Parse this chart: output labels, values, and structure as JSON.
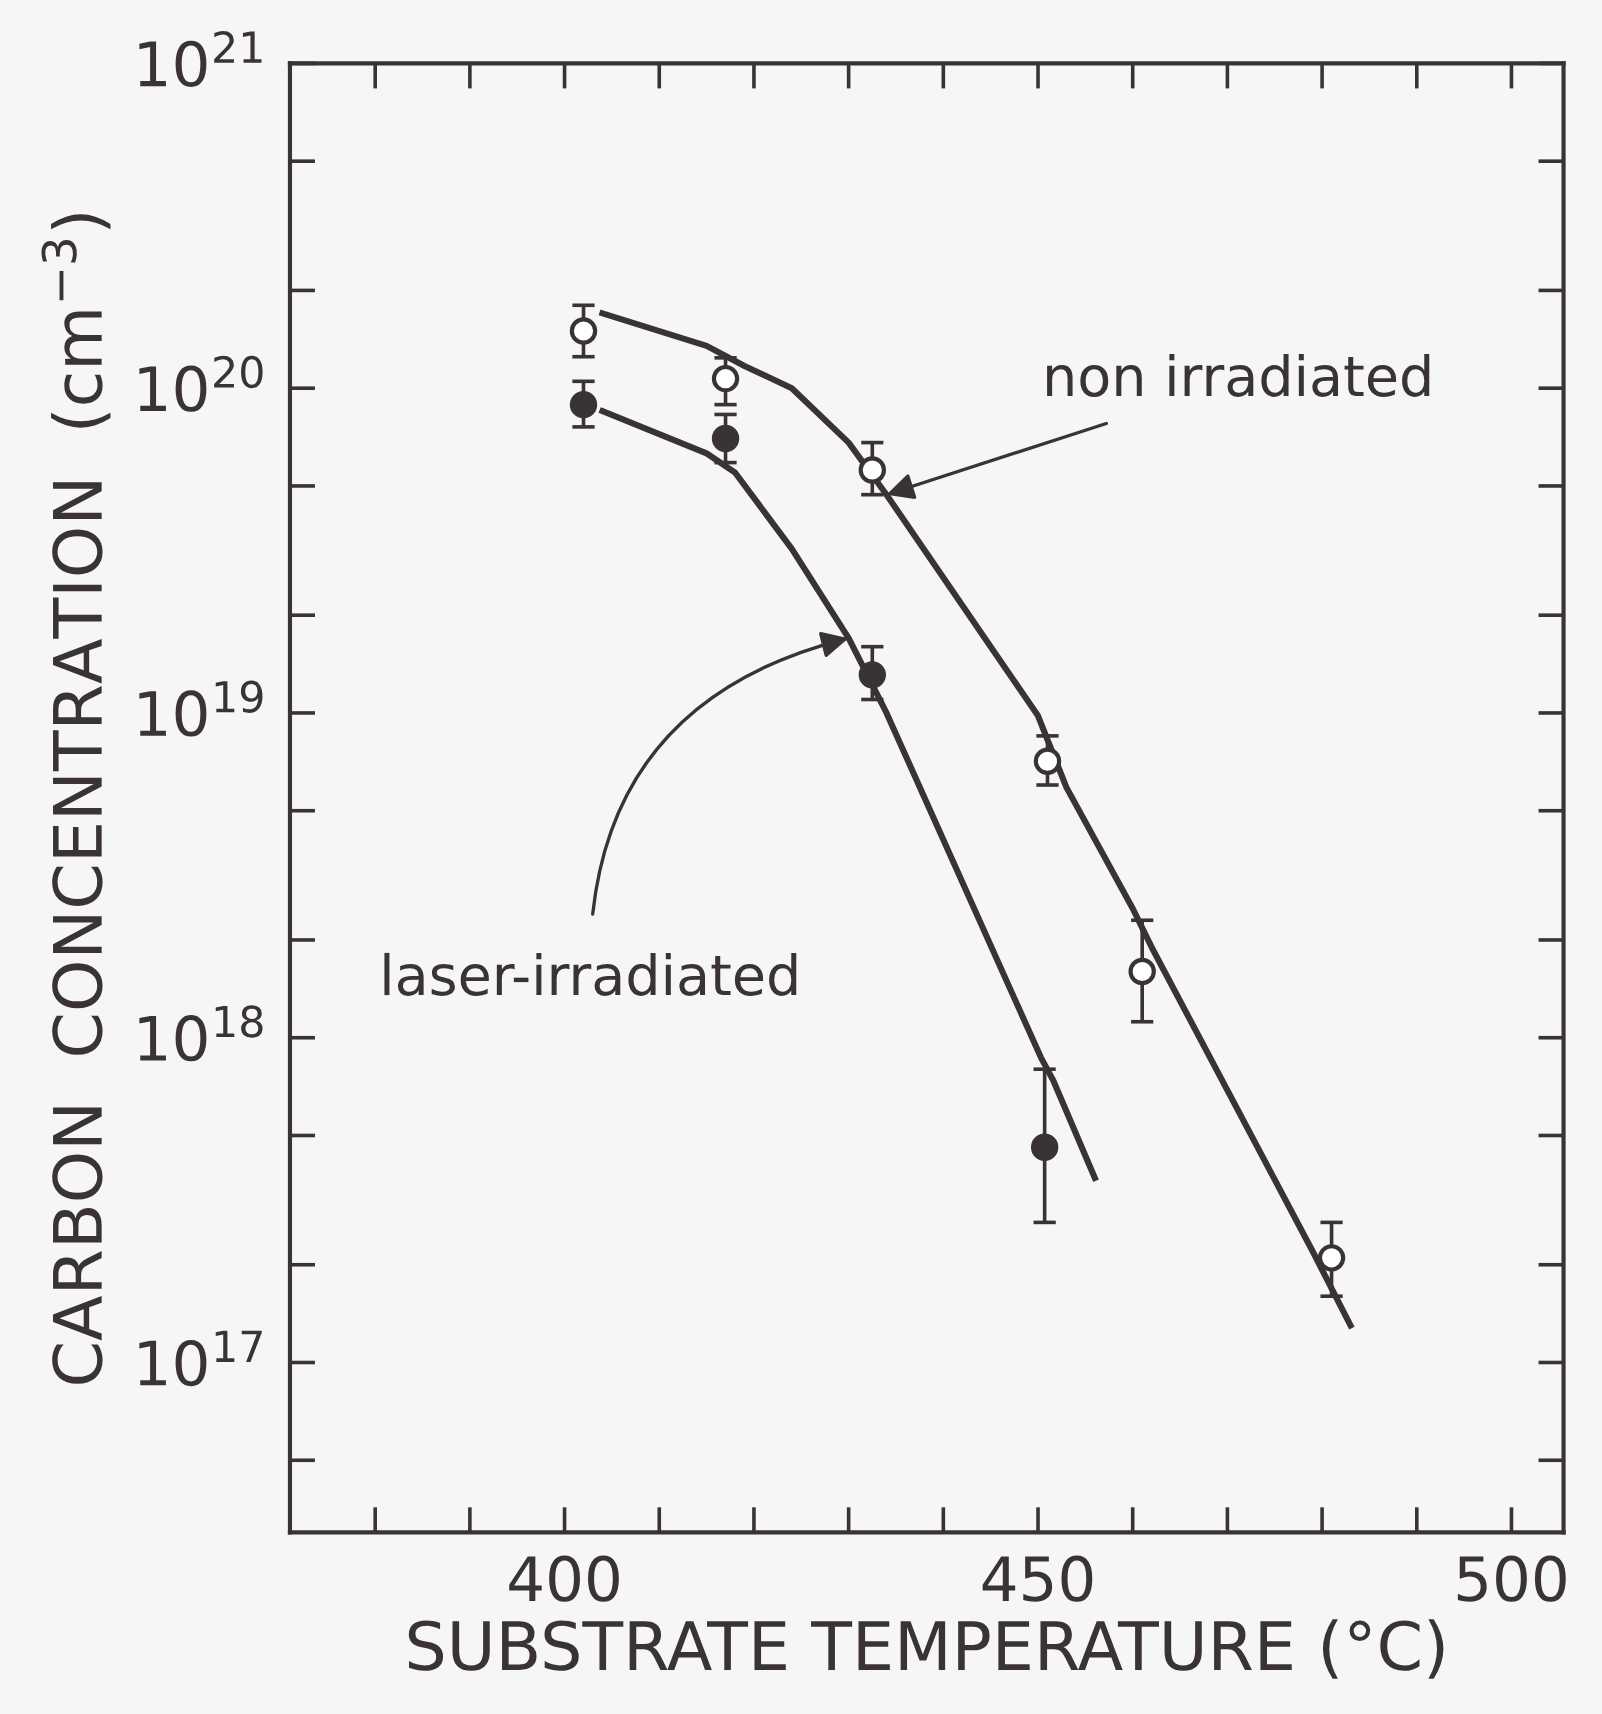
{
  "chart_data": {
    "type": "scatter",
    "xlabel": "SUBSTRATE TEMPERATURE (°C)",
    "ylabel": "CARBON  CONCENTRATION  (cm$^{−3}$)",
    "log": "y",
    "xlim": [
      371,
      505.5
    ],
    "xticks": [
      {
        "value": 380,
        "label": null
      },
      {
        "value": 390,
        "label": null
      },
      400,
      {
        "value": 410,
        "label": null
      },
      {
        "value": 420,
        "label": null
      },
      {
        "value": 430,
        "label": null
      },
      {
        "value": 440,
        "label": null
      },
      450,
      {
        "value": 460,
        "label": null
      },
      {
        "value": 470,
        "label": null
      },
      {
        "value": 480,
        "label": null
      },
      {
        "value": 490,
        "label": null
      },
      500
    ],
    "ylim": [
      3e+16,
      1e+21
    ],
    "yticks": [
      {
        "value": 5e+16,
        "label": null
      },
      {
        "value": 1e+17,
        "label": "10$^{17}$"
      },
      {
        "value": 2e+17,
        "label": null
      },
      {
        "value": 5e+17,
        "label": null
      },
      {
        "value": 1e+18,
        "label": "10$^{18}$"
      },
      {
        "value": 2e+18,
        "label": null
      },
      {
        "value": 5e+18,
        "label": null
      },
      {
        "value": 1e+19,
        "label": "10$^{19}$"
      },
      {
        "value": 2e+19,
        "label": null
      },
      {
        "value": 5e+19,
        "label": null
      },
      {
        "value": 1e+20,
        "label": "10$^{20}$"
      },
      {
        "value": 2e+20,
        "label": null
      },
      {
        "value": 5e+20,
        "label": null
      },
      {
        "value": 1e+21,
        "label": "10$^{21}$"
      }
    ],
    "grid": false,
    "legend": false,
    "series": [
      {
        "color": "#ffffff",
        "marker": "circle",
        "x": [
          402,
          417,
          432.5,
          451,
          461,
          481
        ],
        "values": [
          1.5e+20,
          1.07e+20,
          5.6e+19,
          7.1e+18,
          1.6e+18,
          2.1e+17
        ],
        "errors": [
          [
            1.25e+20,
            1.8e+20
          ],
          [
            8.9e+19,
            1.24e+20
          ],
          [
            4.7e+19,
            6.8e+19
          ],
          [
            6e+18,
            8.5e+18
          ],
          [
            1.12e+18,
            2.3e+18
          ],
          [
            1.6e+17,
            2.7e+17
          ]
        ]
      },
      {
        "color": "#3a3335",
        "marker": "circle",
        "x": [
          402,
          417,
          432.5,
          450.7
        ],
        "values": [
          8.9e+19,
          7e+19,
          1.31e+19,
          4.6e+17
        ],
        "errors": [
          [
            7.6e+19,
            1.05e+20
          ],
          [
            5.9e+19,
            8.3e+19
          ],
          [
            1.1e+19,
            1.6e+19
          ],
          [
            2.7e+17,
            8e+17
          ]
        ]
      },
      {
        "type": "line",
        "color": "#3a3335",
        "marker": "none",
        "line_style": "solid",
        "x": [
          404,
          415,
          419,
          424,
          430,
          434,
          450,
          453,
          460,
          462,
          479,
          483
        ],
        "values": [
          1.7e+20,
          1.35e+20,
          1.17e+20,
          1e+20,
          6.8e+19,
          4.7e+19,
          9.8e+18,
          5.9e+18,
          2.5e+18,
          1.9e+18,
          2.2e+17,
          1.3e+17
        ]
      },
      {
        "type": "line",
        "color": "#3a3335",
        "marker": "none",
        "line_style": "solid",
        "x": [
          404,
          415,
          418,
          424,
          430,
          434,
          450.3,
          451.6,
          456
        ],
        "values": [
          8.5e+19,
          6.3e+19,
          5.5e+19,
          3.2e+19,
          1.7e+19,
          1e+19,
          8.7e+17,
          7.4e+17,
          3.7e+17
        ]
      }
    ],
    "annotations": [
      {
        "text": "non irradiated",
        "x": 434,
        "y": 4.7e+19
      },
      {
        "text": "laser-irradiated",
        "x": 430,
        "y": 1.7e+19
      }
    ]
  }
}
